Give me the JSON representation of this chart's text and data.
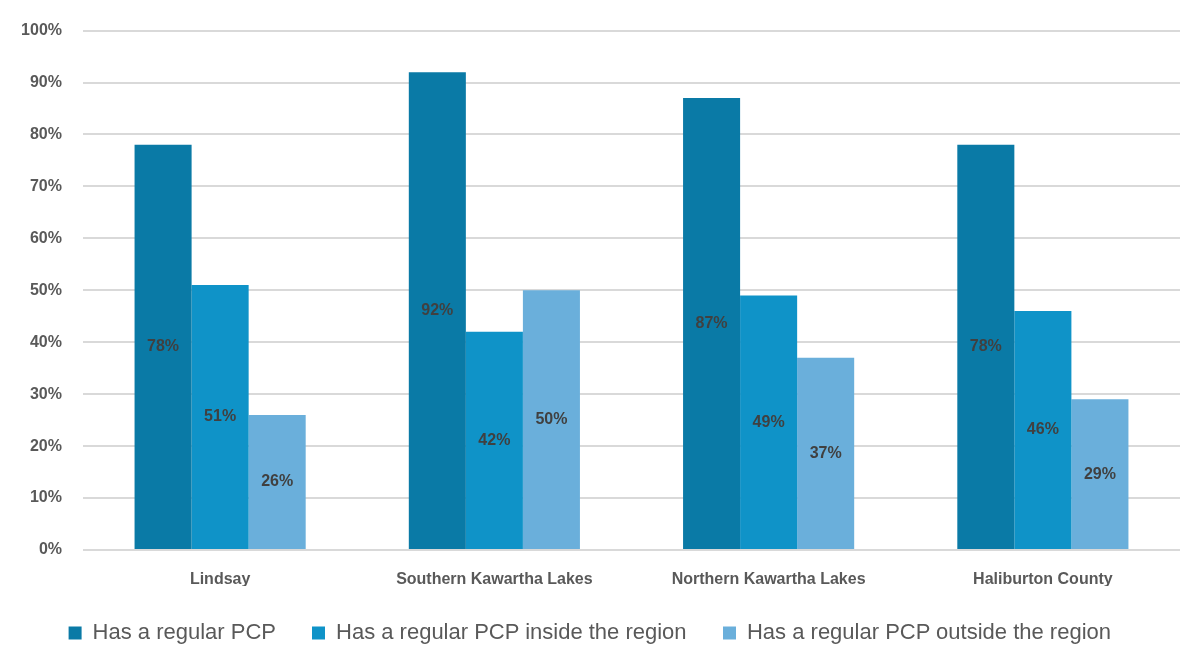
{
  "chart_data": {
    "type": "bar",
    "categories": [
      "Lindsay",
      "Southern Kawartha Lakes",
      "Northern Kawartha Lakes",
      "Haliburton County"
    ],
    "series": [
      {
        "name": "Has a regular PCP",
        "color": "#0a7aa6",
        "values": [
          78,
          92,
          87,
          78
        ],
        "value_labels": [
          "78%",
          "92%",
          "87%",
          "78%"
        ]
      },
      {
        "name": "Has a regular PCP inside the region",
        "color": "#0f93c8",
        "values": [
          51,
          42,
          49,
          46
        ],
        "value_labels": [
          "51%",
          "42%",
          "49%",
          "46%"
        ]
      },
      {
        "name": "Has a regular PCP outside the region",
        "color": "#6aafdb",
        "values": [
          26,
          50,
          37,
          29
        ],
        "value_labels": [
          "26%",
          "50%",
          "37%",
          "29%"
        ]
      }
    ],
    "ylim": [
      0,
      100
    ],
    "yticks": [
      {
        "value": 0,
        "label": "0%"
      },
      {
        "value": 10,
        "label": "10%"
      },
      {
        "value": 20,
        "label": "20%"
      },
      {
        "value": 30,
        "label": "30%"
      },
      {
        "value": 40,
        "label": "40%"
      },
      {
        "value": 50,
        "label": "50%"
      },
      {
        "value": 60,
        "label": "60%"
      },
      {
        "value": 70,
        "label": "70%"
      },
      {
        "value": 80,
        "label": "80%"
      },
      {
        "value": 90,
        "label": "90%"
      },
      {
        "value": 100,
        "label": "100%"
      }
    ],
    "grid": "y",
    "legend": "bottom"
  }
}
